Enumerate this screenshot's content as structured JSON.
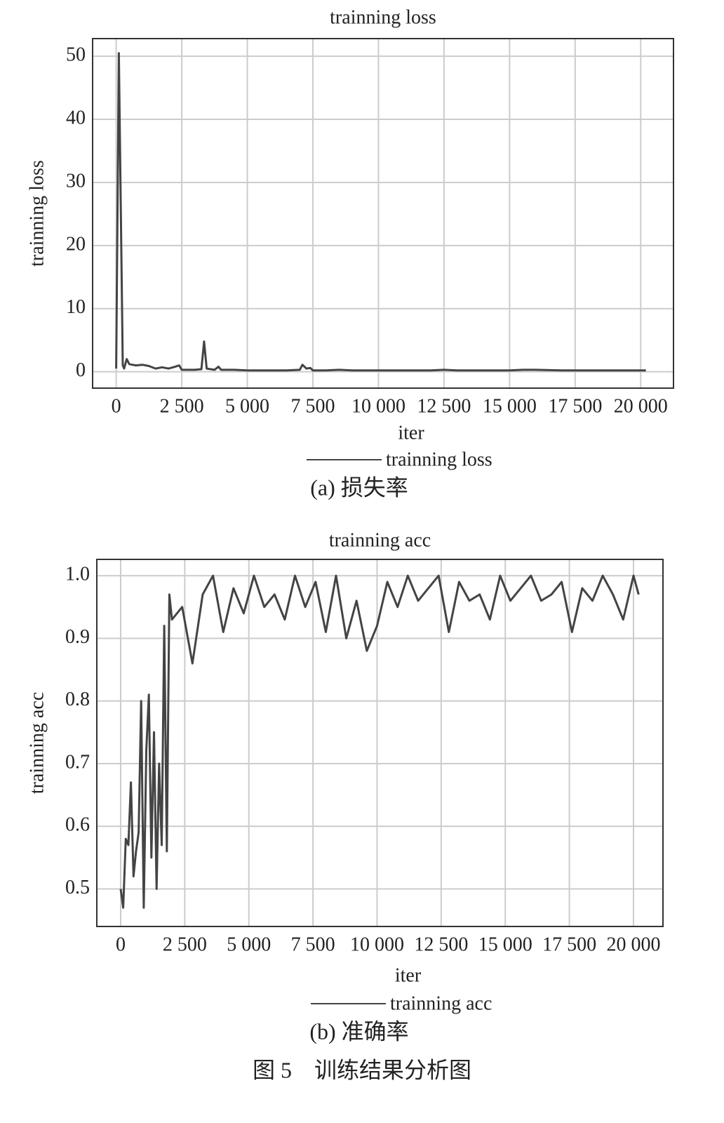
{
  "chart_data": [
    {
      "type": "line",
      "title": "trainning loss",
      "x_label": "iter",
      "y_label": "trainning loss",
      "caption": "(a) 损失率",
      "x": [
        0,
        100,
        250,
        300,
        400,
        500,
        750,
        1000,
        1250,
        1500,
        1750,
        2000,
        2250,
        2400,
        2500,
        2750,
        3000,
        3250,
        3350,
        3450,
        3750,
        3900,
        4000,
        4500,
        5000,
        5500,
        6000,
        6500,
        7000,
        7100,
        7250,
        7400,
        7500,
        8000,
        8500,
        9000,
        10000,
        11000,
        12000,
        12500,
        13000,
        14000,
        15000,
        15500,
        16000,
        17000,
        18000,
        19000,
        20200
      ],
      "series": [
        {
          "name": "trainning loss",
          "color": "#444444",
          "values": [
            0.5,
            50.5,
            1,
            0.5,
            2,
            1.2,
            1.0,
            1.1,
            0.9,
            0.5,
            0.7,
            0.5,
            0.8,
            1.0,
            0.3,
            0.3,
            0.3,
            0.4,
            4.8,
            0.5,
            0.3,
            0.8,
            0.3,
            0.3,
            0.2,
            0.2,
            0.2,
            0.2,
            0.3,
            1.1,
            0.5,
            0.6,
            0.2,
            0.2,
            0.3,
            0.2,
            0.2,
            0.2,
            0.2,
            0.3,
            0.2,
            0.2,
            0.2,
            0.3,
            0.3,
            0.2,
            0.2,
            0.2,
            0.2
          ]
        }
      ],
      "xlim": [
        -900,
        21250
      ],
      "ylim": [
        -2.6,
        52.8
      ],
      "xticks": [
        0,
        {
          "value": 2500,
          "label": "2 500"
        },
        {
          "value": 5000,
          "label": "5 000"
        },
        {
          "value": 7500,
          "label": "7 500"
        },
        {
          "value": 10000,
          "label": "10 000"
        },
        {
          "value": 12500,
          "label": "12 500"
        },
        {
          "value": 15000,
          "label": "15 000"
        },
        {
          "value": 17500,
          "label": "17 500"
        },
        {
          "value": 20000,
          "label": "20 000"
        }
      ],
      "yticks": [
        0,
        10,
        20,
        30,
        40,
        50
      ],
      "grid": true,
      "legend": "below"
    },
    {
      "type": "line",
      "title": "trainning acc",
      "x_label": "iter",
      "y_label": "trainning acc",
      "caption": "(b) 准确率",
      "x": [
        0,
        100,
        200,
        300,
        400,
        500,
        600,
        700,
        800,
        900,
        1000,
        1100,
        1200,
        1300,
        1400,
        1500,
        1600,
        1700,
        1800,
        1900,
        2000,
        2400,
        2800,
        3200,
        3600,
        4000,
        4400,
        4800,
        5200,
        5600,
        6000,
        6400,
        6800,
        7200,
        7600,
        8000,
        8400,
        8800,
        9200,
        9600,
        10000,
        10400,
        10800,
        11200,
        11600,
        12000,
        12400,
        12800,
        13200,
        13600,
        14000,
        14400,
        14800,
        15200,
        15600,
        16000,
        16400,
        16800,
        17200,
        17600,
        18000,
        18400,
        18800,
        19200,
        19600,
        20000,
        20200
      ],
      "series": [
        {
          "name": "trainning acc",
          "color": "#444444",
          "values": [
            0.5,
            0.47,
            0.58,
            0.57,
            0.67,
            0.52,
            0.56,
            0.59,
            0.8,
            0.47,
            0.72,
            0.81,
            0.55,
            0.75,
            0.5,
            0.7,
            0.57,
            0.92,
            0.56,
            0.97,
            0.93,
            0.95,
            0.86,
            0.97,
            1.0,
            0.91,
            0.98,
            0.94,
            1.0,
            0.95,
            0.97,
            0.93,
            1.0,
            0.95,
            0.99,
            0.91,
            1.0,
            0.9,
            0.96,
            0.88,
            0.92,
            0.99,
            0.95,
            1.0,
            0.96,
            0.98,
            1.0,
            0.91,
            0.99,
            0.96,
            0.97,
            0.93,
            1.0,
            0.96,
            0.98,
            1.0,
            0.96,
            0.97,
            0.99,
            0.91,
            0.98,
            0.96,
            1.0,
            0.97,
            0.93,
            1.0,
            0.97
          ]
        }
      ],
      "xlim": [
        -930,
        21150
      ],
      "ylim": [
        0.44,
        1.026
      ],
      "xticks": [
        0,
        {
          "value": 2500,
          "label": "2 500"
        },
        {
          "value": 5000,
          "label": "5 000"
        },
        {
          "value": 7500,
          "label": "7 500"
        },
        {
          "value": 10000,
          "label": "10 000"
        },
        {
          "value": 12500,
          "label": "12 500"
        },
        {
          "value": 15000,
          "label": "15 000"
        },
        {
          "value": 17500,
          "label": "17 500"
        },
        {
          "value": 20000,
          "label": "20 000"
        }
      ],
      "yticks": [
        0.5,
        0.6,
        0.7,
        0.8,
        0.9,
        {
          "value": 1,
          "label": "1.0"
        }
      ],
      "grid": true,
      "legend": "below"
    }
  ],
  "figure_caption": "图 5　训练结果分析图"
}
